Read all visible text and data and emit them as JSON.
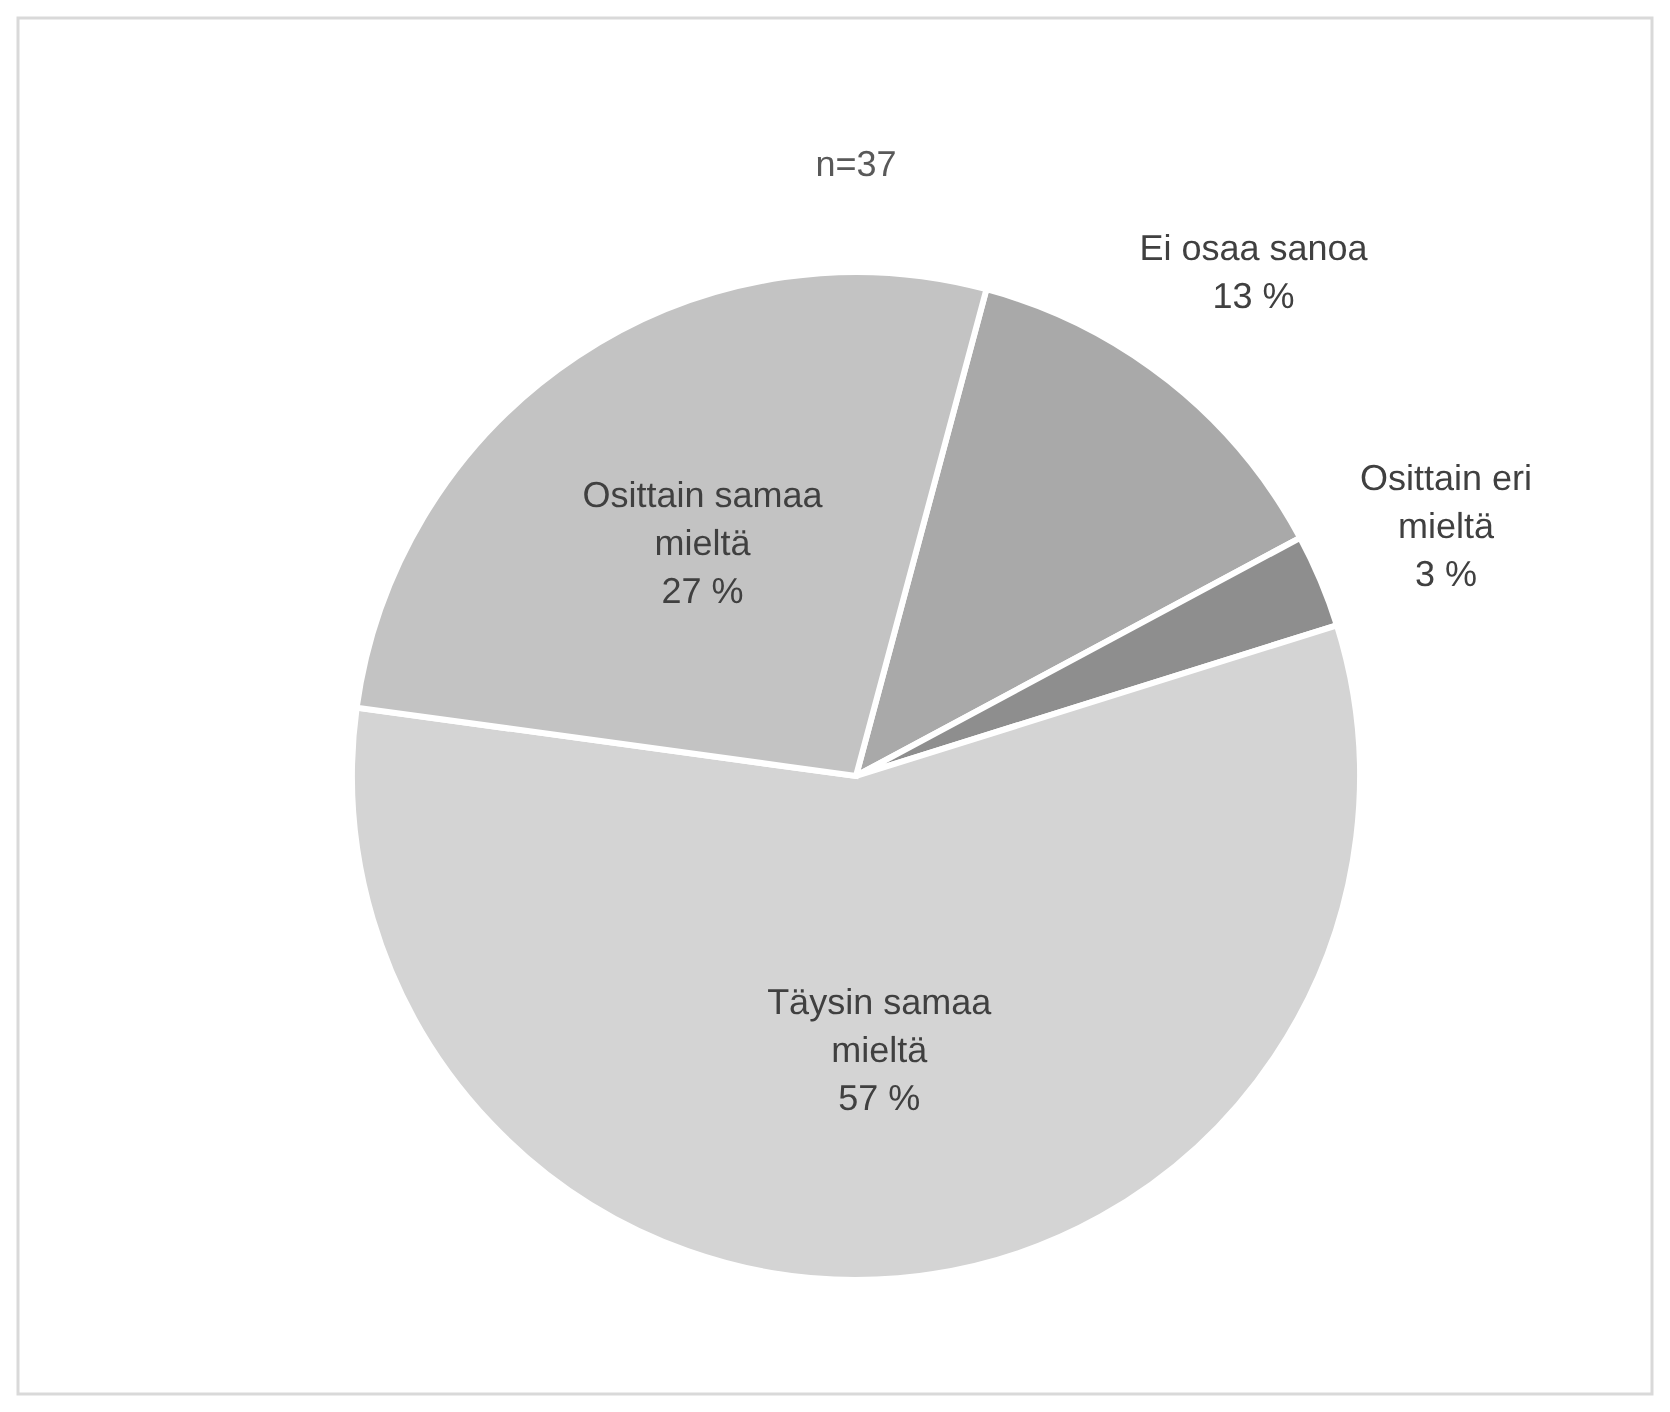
{
  "chart_data": {
    "type": "pie",
    "title": "n=37",
    "categories": [
      "Ei osaa sanoa",
      "Osittain eri mieltä",
      "Täysin samaa mieltä",
      "Osittain samaa mieltä"
    ],
    "values": [
      13,
      3,
      57,
      27
    ],
    "value_labels": [
      "13 %",
      "3 %",
      "57 %",
      "27 %"
    ],
    "colors": [
      "#a9a9a9",
      "#8e8e8e",
      "#d4d4d4",
      "#c3c3c3"
    ]
  }
}
